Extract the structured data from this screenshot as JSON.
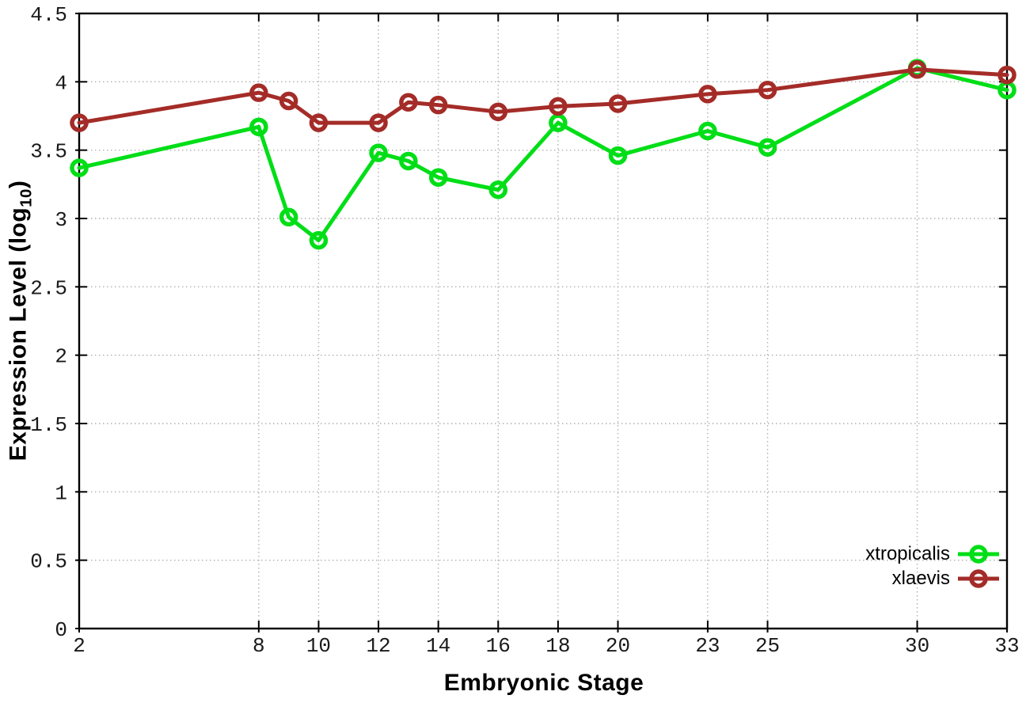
{
  "chart_data": {
    "type": "line",
    "title": "",
    "xlabel": "Embryonic Stage",
    "ylabel": {
      "prefix": "Expression Level (log",
      "subscript": "10",
      "suffix": ")"
    },
    "xlim": [
      2,
      33
    ],
    "ylim": [
      0,
      4.5
    ],
    "grid": true,
    "legend_position": "bottom-right",
    "x_ticks": [
      2,
      8,
      10,
      12,
      14,
      16,
      18,
      20,
      23,
      25,
      30,
      33
    ],
    "x_tick_labels": [
      "2",
      "8",
      "10",
      "12",
      "14",
      "16",
      "18",
      "20",
      "23",
      "25",
      "30",
      "33"
    ],
    "y_ticks": [
      0,
      0.5,
      1,
      1.5,
      2,
      2.5,
      3,
      3.5,
      4,
      4.5
    ],
    "y_tick_labels": [
      "0",
      "0.5",
      "1",
      "1.5",
      "2",
      "2.5",
      "3",
      "3.5",
      "4",
      "4.5"
    ],
    "x": [
      2,
      8,
      9,
      10,
      12,
      13,
      14,
      16,
      18,
      20,
      23,
      25,
      30,
      33
    ],
    "series": [
      {
        "name": "xtropicalis",
        "color": "#00de17",
        "marker": "open-circle",
        "values": [
          3.37,
          3.67,
          3.01,
          2.84,
          3.48,
          3.42,
          3.3,
          3.21,
          3.7,
          3.46,
          3.64,
          3.52,
          4.1,
          3.94
        ]
      },
      {
        "name": "xlaevis",
        "color": "#a42c28",
        "marker": "open-circle",
        "values": [
          3.7,
          3.92,
          3.86,
          3.7,
          3.7,
          3.85,
          3.83,
          3.78,
          3.82,
          3.84,
          3.91,
          3.94,
          4.09,
          4.05
        ]
      }
    ],
    "axis_color": "#000000",
    "grid_color": "#b0b0b0",
    "tick_label_color": "#1a1a1a"
  }
}
